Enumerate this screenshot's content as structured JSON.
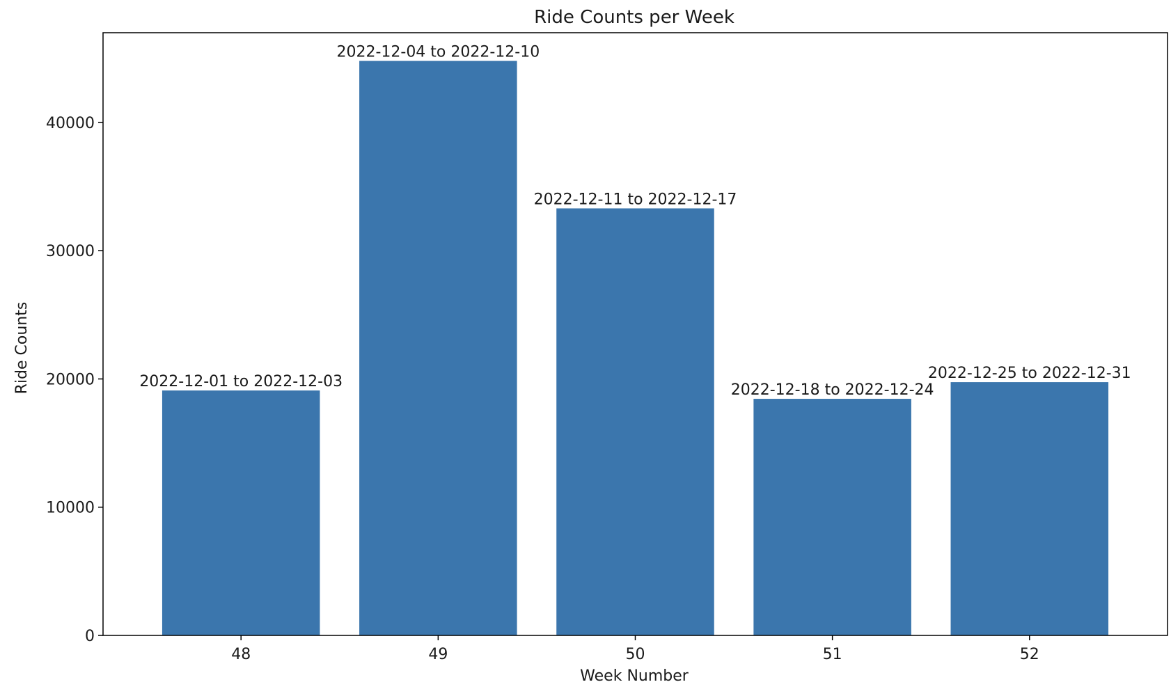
{
  "chart_data": {
    "type": "bar",
    "title": "Ride Counts per Week",
    "xlabel": "Week Number",
    "ylabel": "Ride Counts",
    "categories": [
      "48",
      "49",
      "50",
      "51",
      "52"
    ],
    "values": [
      19100,
      44800,
      33300,
      18450,
      19750
    ],
    "bar_labels": [
      "2022-12-01 to 2022-12-03",
      "2022-12-04 to 2022-12-10",
      "2022-12-11 to 2022-12-17",
      "2022-12-18 to 2022-12-24",
      "2022-12-25 to 2022-12-31"
    ],
    "yticks": [
      0,
      10000,
      20000,
      30000,
      40000
    ],
    "ylim": [
      0,
      47000
    ],
    "grid": false,
    "bar_color": "#3b76ad"
  }
}
